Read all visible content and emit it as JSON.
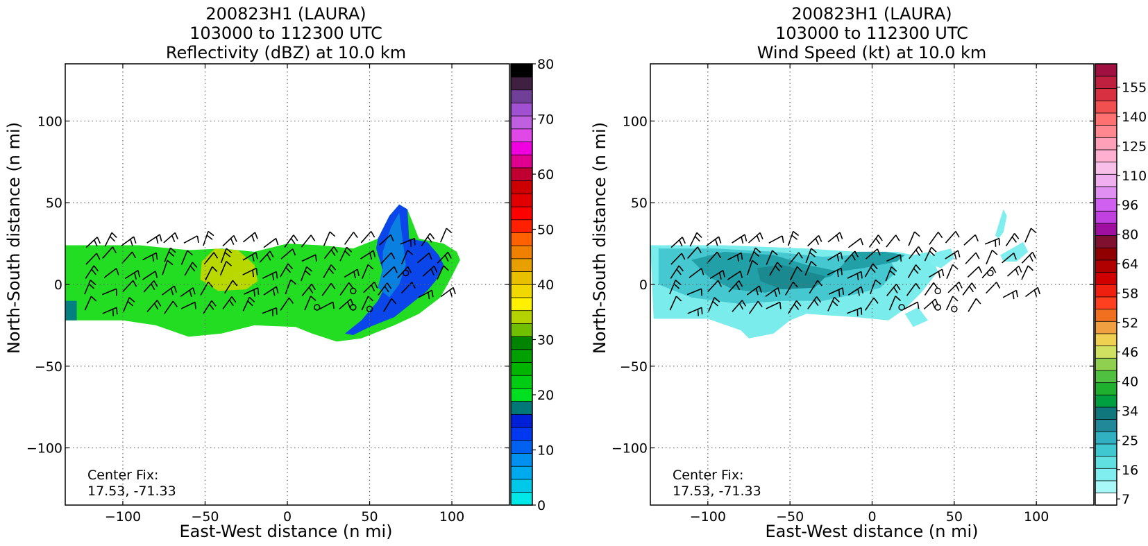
{
  "figure": {
    "panels": [
      {
        "title_lines": [
          "200823H1 (LAURA)",
          "103000 to 112300 UTC",
          "Reflectivity (dBZ) at 10.0 km"
        ],
        "xlabel": "East-West distance (n mi)",
        "ylabel": "North-South distance (n mi)",
        "center_fix_label": "Center Fix:",
        "center_fix_value": "17.53, -71.33",
        "colorbar_ticks": [
          "0",
          "10",
          "20",
          "30",
          "40",
          "50",
          "60",
          "70",
          "80"
        ]
      },
      {
        "title_lines": [
          "200823H1 (LAURA)",
          "103000 to 112300 UTC",
          "Wind Speed (kt) at 10.0 km"
        ],
        "xlabel": "East-West distance (n mi)",
        "ylabel": "North-South distance (n mi)",
        "center_fix_label": "Center Fix:",
        "center_fix_value": "17.53, -71.33",
        "colorbar_ticks": [
          "7",
          "16",
          "25",
          "34",
          "40",
          "46",
          "52",
          "58",
          "64",
          "80",
          "96",
          "110",
          "125",
          "140",
          "155"
        ]
      }
    ]
  },
  "chart_data": [
    {
      "type": "heatmap",
      "field": "Reflectivity",
      "units": "dBZ",
      "xlim": [
        -135,
        135
      ],
      "ylim": [
        -135,
        135
      ],
      "xticks": [
        -100,
        -50,
        0,
        50,
        100
      ],
      "yticks": [
        -100,
        -50,
        0,
        50,
        100
      ],
      "grid": true,
      "grid_style": "dotted",
      "colorbar": {
        "min": 0,
        "max": 80,
        "step": 5,
        "ticks": [
          0,
          10,
          20,
          30,
          40,
          50,
          60,
          70,
          80
        ],
        "colors": [
          "#00e8e8",
          "#00c8e8",
          "#00aaee",
          "#0090f0",
          "#0060f0",
          "#0038f0",
          "#0020d8",
          "#007878",
          "#00e020",
          "#00cc14",
          "#00b400",
          "#00a000",
          "#008400",
          "#70c000",
          "#b4d200",
          "#fff000",
          "#f0d800",
          "#e8c000",
          "#e8a000",
          "#f08000",
          "#ff6000",
          "#ff2000",
          "#ff0000",
          "#e00000",
          "#cc0000",
          "#c00030",
          "#e00090",
          "#f000e0",
          "#e048e8",
          "#c060e0",
          "#a050d0",
          "#704098",
          "#402040",
          "#000000"
        ]
      },
      "regions": [
        {
          "name": "green",
          "color": "#22dd22",
          "polygon": [
            [
              -135,
              24
            ],
            [
              -90,
              24
            ],
            [
              -60,
              21
            ],
            [
              -40,
              22
            ],
            [
              -20,
              20
            ],
            [
              0,
              25
            ],
            [
              20,
              24
            ],
            [
              40,
              22
            ],
            [
              55,
              28
            ],
            [
              62,
              42
            ],
            [
              68,
              49
            ],
            [
              73,
              46
            ],
            [
              80,
              28
            ],
            [
              95,
              25
            ],
            [
              103,
              20
            ],
            [
              105,
              15
            ],
            [
              100,
              5
            ],
            [
              93,
              -8
            ],
            [
              80,
              -18
            ],
            [
              65,
              -25
            ],
            [
              45,
              -33
            ],
            [
              30,
              -35
            ],
            [
              15,
              -30
            ],
            [
              5,
              -26
            ],
            [
              -20,
              -25
            ],
            [
              -40,
              -30
            ],
            [
              -60,
              -32
            ],
            [
              -80,
              -25
            ],
            [
              -100,
              -22
            ],
            [
              -135,
              -22
            ]
          ]
        },
        {
          "name": "blue",
          "color": "#0a46ea",
          "polygon": [
            [
              55,
              28
            ],
            [
              62,
              42
            ],
            [
              68,
              49
            ],
            [
              73,
              46
            ],
            [
              74,
              28
            ],
            [
              85,
              26
            ],
            [
              92,
              18
            ],
            [
              95,
              12
            ],
            [
              90,
              2
            ],
            [
              85,
              -4
            ],
            [
              75,
              -12
            ],
            [
              65,
              -20
            ],
            [
              50,
              -26
            ],
            [
              40,
              -31
            ],
            [
              35,
              -30
            ],
            [
              45,
              -22
            ],
            [
              55,
              -10
            ],
            [
              60,
              0
            ],
            [
              57,
              12
            ],
            [
              54,
              22
            ]
          ]
        },
        {
          "name": "blue-teal",
          "color": "#0a80e0",
          "polygon": [
            [
              58,
              20
            ],
            [
              63,
              35
            ],
            [
              68,
              44
            ],
            [
              70,
              28
            ],
            [
              72,
              12
            ],
            [
              68,
              0
            ],
            [
              62,
              -8
            ],
            [
              55,
              -2
            ],
            [
              58,
              10
            ]
          ]
        },
        {
          "name": "yellow",
          "color": "#ffe000",
          "polygon": [
            [
              -50,
              10
            ],
            [
              -46,
              16
            ],
            [
              -38,
              18
            ],
            [
              -28,
              15
            ],
            [
              -22,
              6
            ],
            [
              -26,
              0
            ],
            [
              -40,
              -1
            ],
            [
              -48,
              4
            ]
          ]
        },
        {
          "name": "yellow-green",
          "color": "#b8d800",
          "polygon": [
            [
              -52,
              14
            ],
            [
              -44,
              22
            ],
            [
              -30,
              21
            ],
            [
              -20,
              12
            ],
            [
              -18,
              2
            ],
            [
              -25,
              -3
            ],
            [
              -42,
              -4
            ],
            [
              -53,
              3
            ]
          ]
        },
        {
          "name": "teal",
          "color": "#058080",
          "polygon": [
            [
              -135,
              -10
            ],
            [
              -128,
              -10
            ],
            [
              -128,
              -22
            ],
            [
              -135,
              -22
            ]
          ]
        }
      ],
      "center_markers": [
        [
          40,
          -4
        ],
        [
          40,
          -14
        ],
        [
          50,
          -15
        ],
        [
          72,
          7
        ],
        [
          18,
          -14
        ]
      ]
    },
    {
      "type": "heatmap",
      "field": "Wind Speed",
      "units": "kt",
      "xlim": [
        -135,
        135
      ],
      "ylim": [
        -135,
        135
      ],
      "xticks": [
        -100,
        -50,
        0,
        50,
        100
      ],
      "yticks": [
        -100,
        -50,
        0,
        50,
        100
      ],
      "grid": true,
      "grid_style": "dotted",
      "colorbar": {
        "ticks": [
          7,
          16,
          25,
          34,
          40,
          46,
          52,
          58,
          64,
          80,
          96,
          110,
          125,
          140,
          155
        ],
        "colors": [
          "#ffffff",
          "#a8f8f8",
          "#80eeee",
          "#60e0e0",
          "#40c8d0",
          "#30b0c0",
          "#208898",
          "#10787c",
          "#00a040",
          "#20b030",
          "#50c040",
          "#90d050",
          "#d0e060",
          "#f0d050",
          "#f0a040",
          "#f07020",
          "#ff4020",
          "#f02010",
          "#d00000",
          "#b00000",
          "#900000",
          "#801030",
          "#a010a0",
          "#c040e0",
          "#d060f0",
          "#e090f0",
          "#f0b0f0",
          "#f8c0e8",
          "#ffb0d0",
          "#ffa0b8",
          "#ff8890",
          "#ff7070",
          "#f05050",
          "#d83040",
          "#c02040",
          "#a01040"
        ]
      },
      "regions": [
        {
          "name": "light-cyan",
          "color": "#7aecec",
          "polygon": [
            [
              -135,
              24
            ],
            [
              -90,
              24
            ],
            [
              -40,
              22
            ],
            [
              -10,
              20
            ],
            [
              15,
              20
            ],
            [
              25,
              18
            ],
            [
              35,
              20
            ],
            [
              40,
              8
            ],
            [
              30,
              -5
            ],
            [
              20,
              -15
            ],
            [
              10,
              -22
            ],
            [
              -10,
              -20
            ],
            [
              -40,
              -18
            ],
            [
              -50,
              -22
            ],
            [
              -60,
              -30
            ],
            [
              -75,
              -33
            ],
            [
              -80,
              -28
            ],
            [
              -100,
              -21
            ],
            [
              -133,
              -21
            ]
          ]
        },
        {
          "name": "medium-cyan",
          "color": "#45c8d0",
          "polygon": [
            [
              -130,
              22
            ],
            [
              -95,
              22
            ],
            [
              -60,
              20
            ],
            [
              -30,
              17
            ],
            [
              -10,
              18
            ],
            [
              10,
              16
            ],
            [
              15,
              8
            ],
            [
              5,
              -2
            ],
            [
              -10,
              -6
            ],
            [
              -30,
              -10
            ],
            [
              -55,
              -10
            ],
            [
              -80,
              -12
            ],
            [
              -110,
              -8
            ],
            [
              -130,
              0
            ]
          ]
        },
        {
          "name": "teal",
          "color": "#22a0a8",
          "polygon": [
            [
              -110,
              15
            ],
            [
              -90,
              20
            ],
            [
              -60,
              18
            ],
            [
              -40,
              12
            ],
            [
              -20,
              8
            ],
            [
              -5,
              10
            ],
            [
              15,
              14
            ],
            [
              20,
              18
            ],
            [
              8,
              20
            ],
            [
              -10,
              20
            ],
            [
              -25,
              5
            ],
            [
              -45,
              0
            ],
            [
              -65,
              -5
            ],
            [
              -85,
              -3
            ],
            [
              -100,
              5
            ]
          ]
        },
        {
          "name": "dark-teal",
          "color": "#1a8a90",
          "polygon": [
            [
              -70,
              10
            ],
            [
              -55,
              12
            ],
            [
              -40,
              8
            ],
            [
              -28,
              5
            ],
            [
              -35,
              -2
            ],
            [
              -55,
              -3
            ],
            [
              -68,
              2
            ]
          ]
        },
        {
          "name": "cyan-patch-east1",
          "color": "#80eeee",
          "polygon": [
            [
              35,
              17
            ],
            [
              40,
              20
            ],
            [
              48,
              22
            ],
            [
              50,
              16
            ],
            [
              42,
              10
            ],
            [
              36,
              12
            ]
          ]
        },
        {
          "name": "cyan-patch-east2",
          "color": "#80eeee",
          "polygon": [
            [
              75,
              30
            ],
            [
              78,
              40
            ],
            [
              80,
              46
            ],
            [
              82,
              42
            ],
            [
              80,
              32
            ],
            [
              77,
              28
            ]
          ]
        },
        {
          "name": "cyan-patch-east3",
          "color": "#80eeee",
          "polygon": [
            [
              78,
              18
            ],
            [
              85,
              22
            ],
            [
              92,
              26
            ],
            [
              95,
              20
            ],
            [
              88,
              14
            ],
            [
              80,
              14
            ]
          ]
        },
        {
          "name": "cyan-patch-south",
          "color": "#80eeee",
          "polygon": [
            [
              20,
              -18
            ],
            [
              28,
              -14
            ],
            [
              34,
              -22
            ],
            [
              25,
              -26
            ]
          ]
        }
      ],
      "center_markers": [
        [
          40,
          -4
        ],
        [
          40,
          -14
        ],
        [
          50,
          -15
        ],
        [
          72,
          7
        ],
        [
          18,
          -14
        ]
      ]
    }
  ]
}
